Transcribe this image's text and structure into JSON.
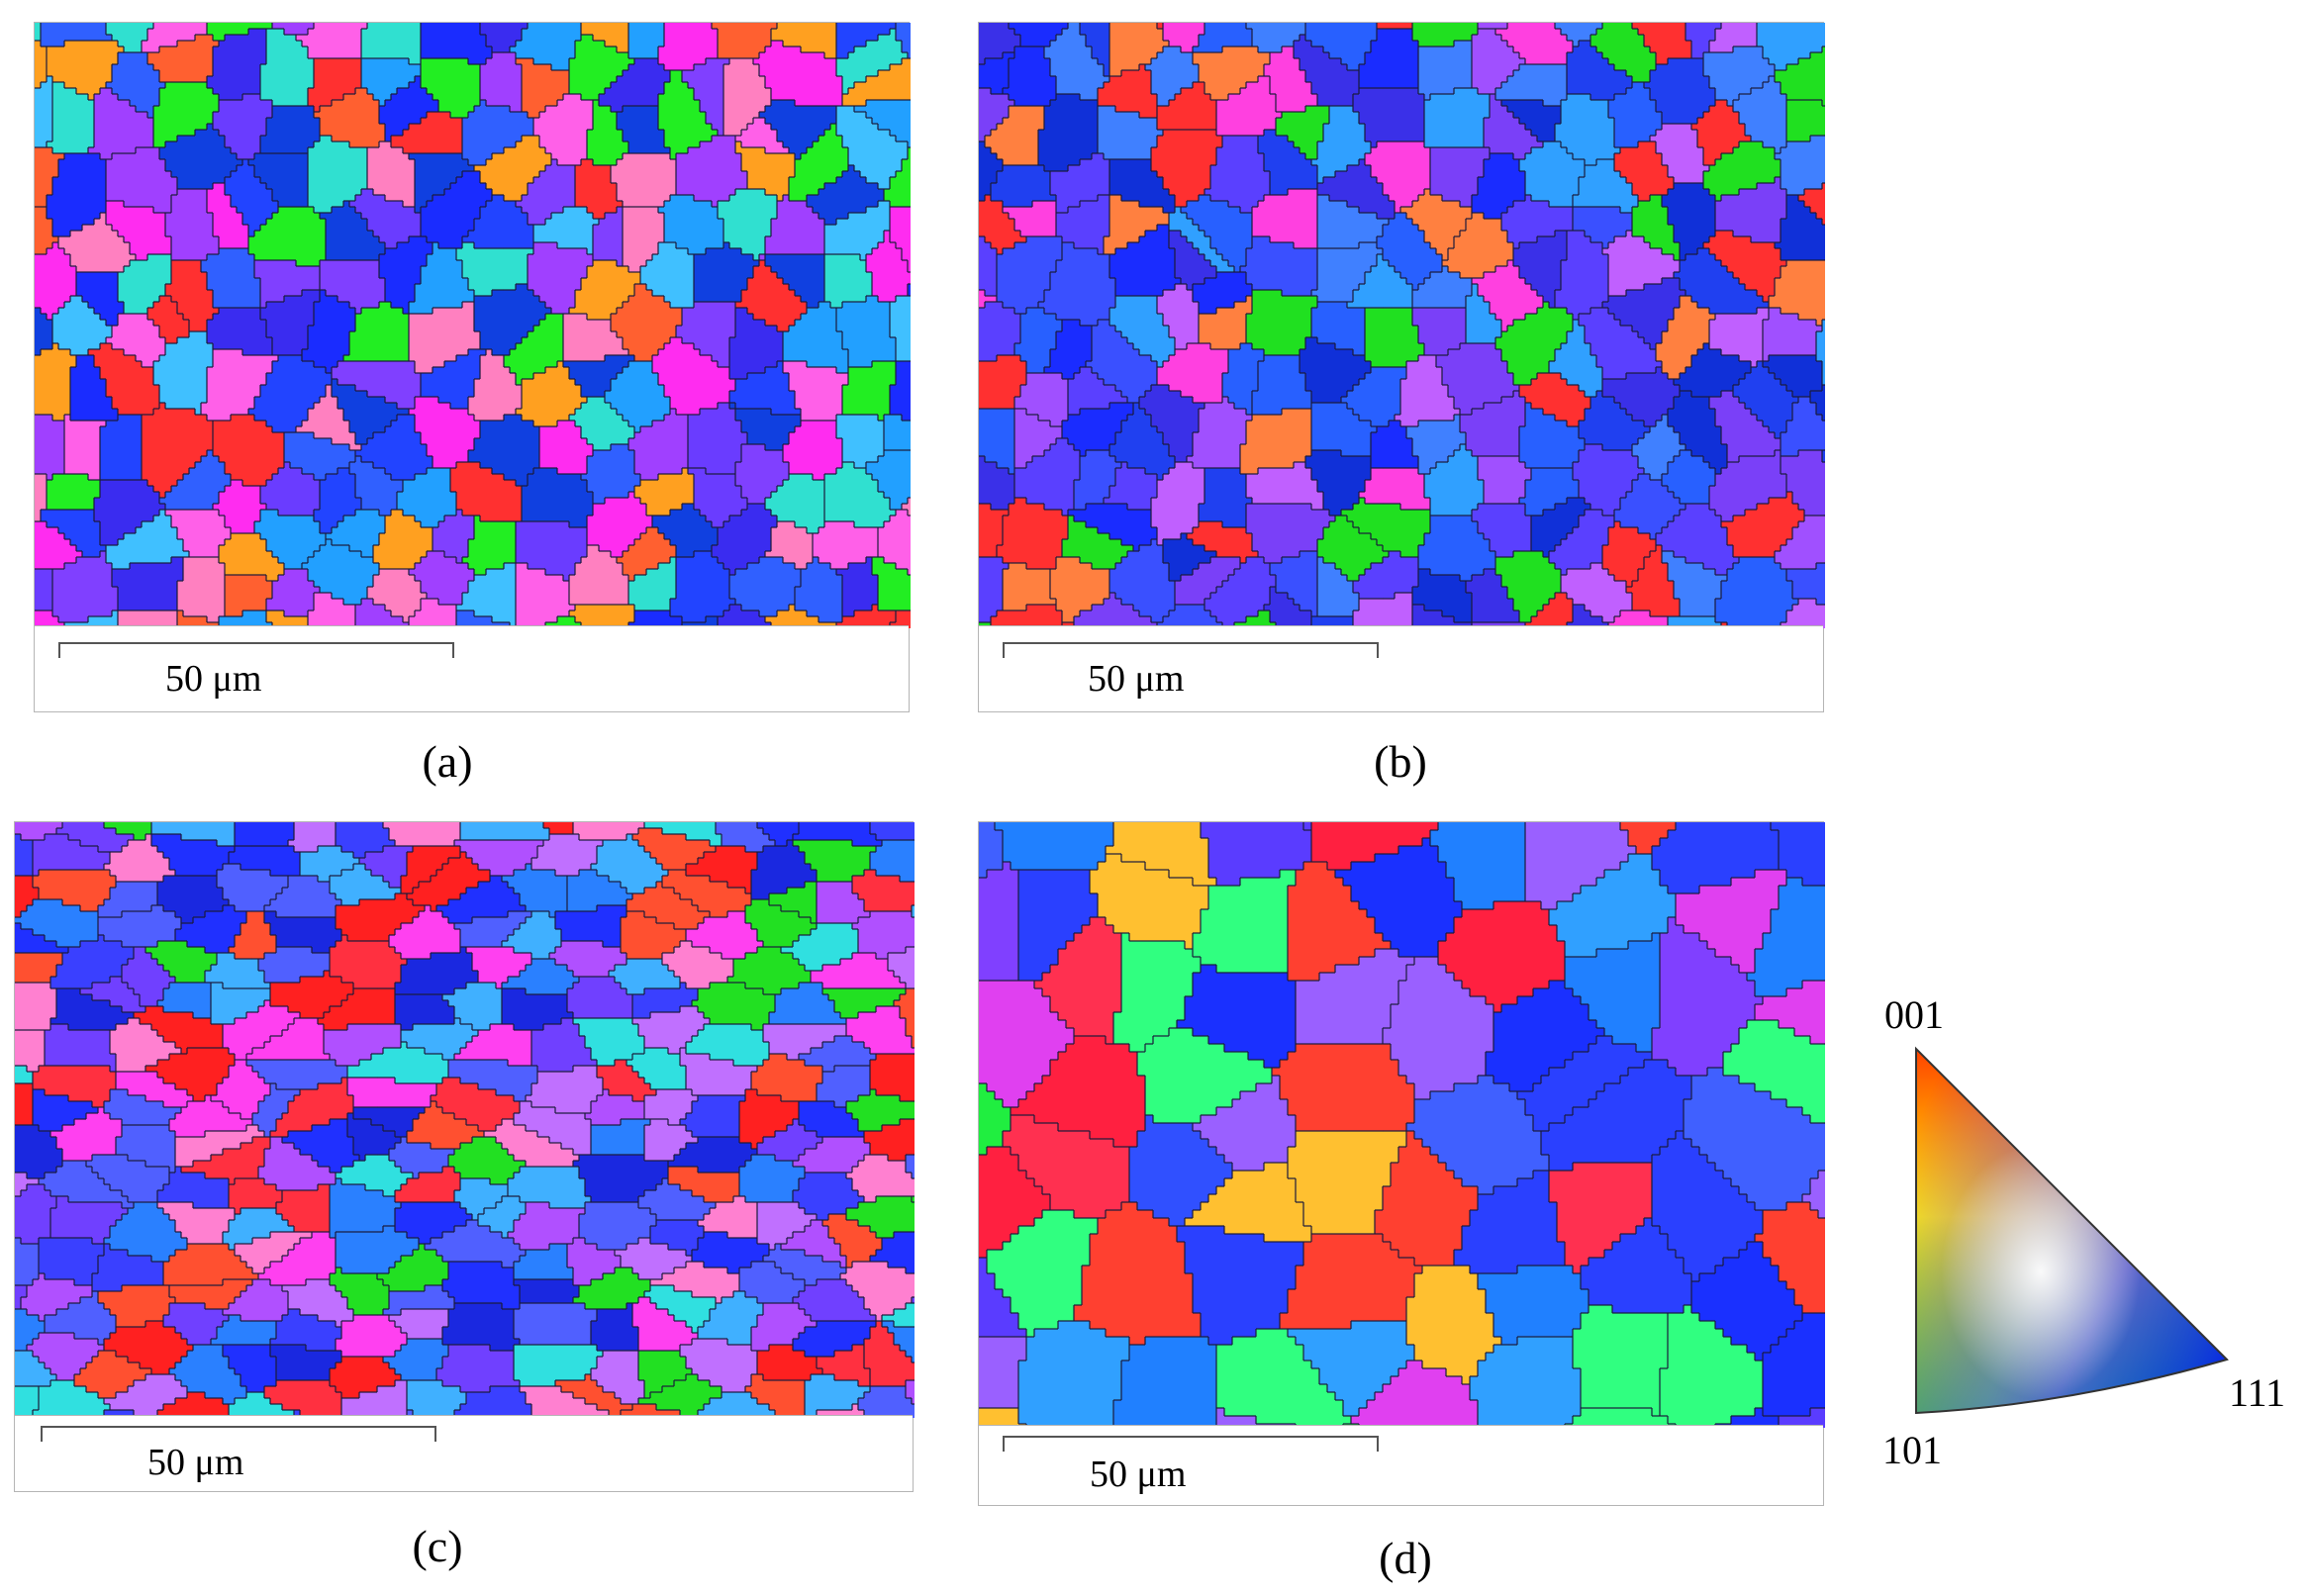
{
  "panels": [
    {
      "id": "a",
      "caption": "(a)",
      "scale_label": "50 μm",
      "seed": 11,
      "palette": "blue-magenta"
    },
    {
      "id": "b",
      "caption": "(b)",
      "scale_label": "50 μm",
      "seed": 27,
      "palette": "blue-dominant"
    },
    {
      "id": "c",
      "caption": "(c)",
      "scale_label": "50 μm",
      "seed": 43,
      "palette": "mixed-deformed"
    },
    {
      "id": "d",
      "caption": "(d)",
      "scale_label": "50 μm",
      "seed": 59,
      "palette": "coarse"
    }
  ],
  "ipf_key": {
    "label_top": "001",
    "label_bottom_left": "101",
    "label_right": "111",
    "colors": {
      "001": "#ff0000",
      "101": "#00ff00",
      "111": "#0000ff"
    }
  },
  "palettes": {
    "blue-magenta": [
      "#1a2cff",
      "#2244ff",
      "#3a2cf0",
      "#6a3cff",
      "#a040ff",
      "#ff2cf0",
      "#ff60e8",
      "#40c0ff",
      "#22a0ff",
      "#30e0d0",
      "#ff3030",
      "#ff6030",
      "#22ee22",
      "#3060ff",
      "#8040ff",
      "#ff80c0",
      "#ffa020",
      "#1040e0"
    ],
    "blue-dominant": [
      "#1a2cff",
      "#2040f0",
      "#3a30e8",
      "#5a40ff",
      "#7a40f8",
      "#a050ff",
      "#2860ff",
      "#4080ff",
      "#30a0ff",
      "#c060ff",
      "#ff40e0",
      "#ff3030",
      "#ff8040",
      "#20e020",
      "#1030d8",
      "#3a50ff"
    ],
    "mixed-deformed": [
      "#2030ff",
      "#3a40ff",
      "#7040ff",
      "#b050ff",
      "#ff40f0",
      "#ff3040",
      "#ff5030",
      "#40b0ff",
      "#30e0e0",
      "#22e022",
      "#ff80d0",
      "#1a28e0",
      "#5060ff",
      "#c070ff",
      "#ff2020",
      "#2a80ff"
    ],
    "coarse": [
      "#1a30ff",
      "#2a40ff",
      "#3050ff",
      "#5a3cff",
      "#8040ff",
      "#9a60ff",
      "#ff3050",
      "#ff2040",
      "#ff4030",
      "#2080ff",
      "#30a0ff",
      "#ffc030",
      "#20ee40",
      "#30ff80",
      "#e040f0",
      "#4060ff"
    ]
  }
}
